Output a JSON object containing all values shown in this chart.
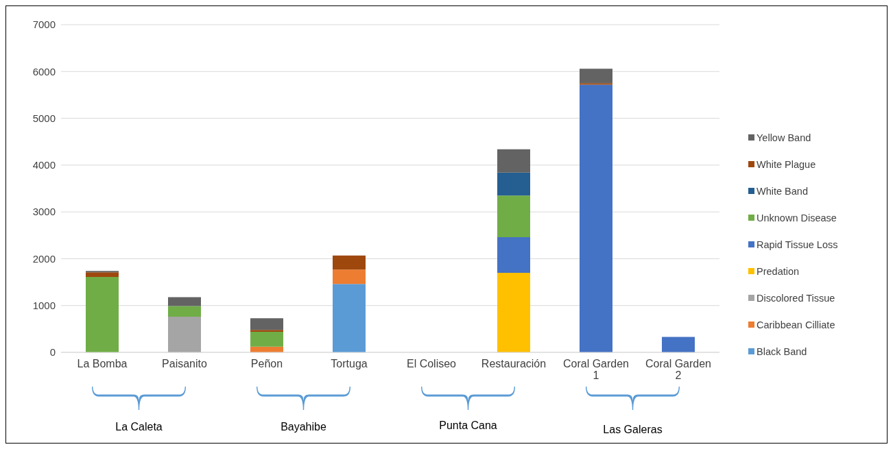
{
  "chart_data": {
    "type": "bar",
    "stacked": true,
    "categories": [
      "La Bomba",
      "Paisanito",
      "Peñon",
      "Tortuga",
      "El Coliseo",
      "Restauración",
      "Coral Garden 1",
      "Coral Garden 2"
    ],
    "series": [
      {
        "name": "Black Band",
        "color": "#5b9bd5",
        "values": [
          0,
          0,
          0,
          1460,
          0,
          0,
          0,
          0
        ]
      },
      {
        "name": "Caribbean Cilliate",
        "color": "#ed7d31",
        "values": [
          0,
          0,
          120,
          310,
          0,
          0,
          0,
          0
        ]
      },
      {
        "name": "Discolored Tissue",
        "color": "#a5a5a5",
        "values": [
          0,
          760,
          0,
          0,
          0,
          0,
          0,
          0
        ]
      },
      {
        "name": "Predation",
        "color": "#ffc000",
        "values": [
          0,
          0,
          0,
          0,
          0,
          1700,
          0,
          0
        ]
      },
      {
        "name": "Rapid Tissue Loss",
        "color": "#4472c4",
        "values": [
          0,
          0,
          0,
          0,
          0,
          760,
          5720,
          330
        ]
      },
      {
        "name": "Unknown Disease",
        "color": "#70ad47",
        "values": [
          1610,
          230,
          320,
          0,
          0,
          890,
          0,
          0
        ]
      },
      {
        "name": "White Band",
        "color": "#255e91",
        "values": [
          0,
          0,
          0,
          0,
          0,
          490,
          0,
          0
        ]
      },
      {
        "name": "White Plague",
        "color": "#9e480e",
        "values": [
          100,
          0,
          40,
          300,
          0,
          0,
          30,
          0
        ]
      },
      {
        "name": "Yellow Band",
        "color": "#636363",
        "values": [
          30,
          190,
          250,
          0,
          0,
          500,
          310,
          0
        ]
      }
    ],
    "ylim": [
      0,
      7000
    ],
    "yticks": [
      0,
      1000,
      2000,
      3000,
      4000,
      5000,
      6000,
      7000
    ],
    "grid": "y",
    "legend": "right",
    "annotations": [
      "La Caleta",
      "Bayahibe",
      "Punta Cana",
      "Las Galeras"
    ]
  }
}
